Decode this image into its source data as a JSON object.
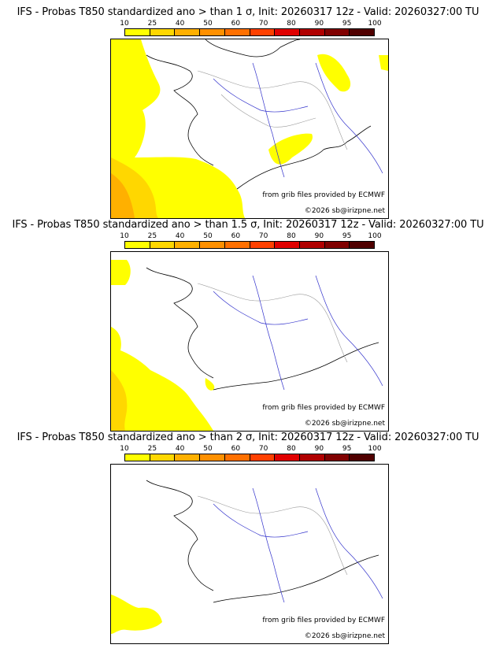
{
  "colorscale": {
    "labels": [
      "10",
      "25",
      "40",
      "50",
      "60",
      "70",
      "80",
      "90",
      "95",
      "100"
    ],
    "colors": [
      "#ffff00",
      "#ffd700",
      "#ffb000",
      "#ff9000",
      "#ff7000",
      "#ff4000",
      "#e00000",
      "#b00000",
      "#800000",
      "#500000"
    ]
  },
  "panels": [
    {
      "title": "IFS - Probas T850  standardized ano > than 1 σ, Init: 20260317 12z - Valid: 20260327:00 TU",
      "source": "from grib files provided by ECMWF",
      "copyright": "©2026 sb@irizpne.net"
    },
    {
      "title": "IFS - Probas T850  standardized ano > than 1.5 σ, Init: 20260317 12z - Valid: 20260327:00 TU",
      "source": "from grib files provided by ECMWF",
      "copyright": "©2026 sb@irizpne.net"
    },
    {
      "title": "IFS - Probas T850  standardized ano > than 2 σ, Init: 20260317 12z - Valid: 20260327:00 TU",
      "source": "from grib files provided by ECMWF",
      "copyright": "©2026 sb@irizpne.net"
    }
  ]
}
